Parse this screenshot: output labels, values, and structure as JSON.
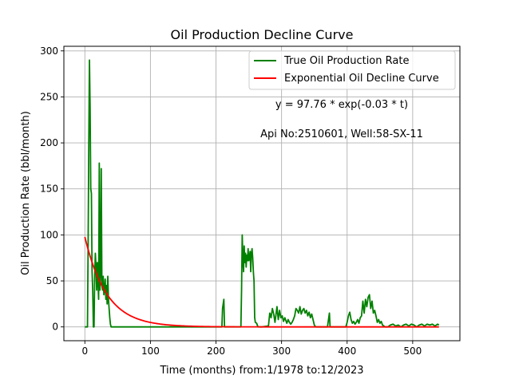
{
  "chart_data": {
    "type": "line",
    "title": "Oil Production Decline Curve",
    "xlabel": "Time (months) from:1/1978 to:12/2023",
    "ylabel": "Oil Production Rate (bbl/month)",
    "xlim": [
      -32,
      572
    ],
    "ylim": [
      -15,
      305
    ],
    "xticks": [
      0,
      100,
      200,
      300,
      400,
      500
    ],
    "yticks": [
      0,
      50,
      100,
      150,
      200,
      250,
      300
    ],
    "grid": true,
    "legend_position": "top-right",
    "annotations": [
      "y = 97.76 * exp(-0.03 * t)",
      "Api No:2510601, Well:58-SX-11"
    ],
    "series": [
      {
        "name": "True Oil Production Rate",
        "color": "#008000",
        "points": [
          [
            0,
            0
          ],
          [
            4,
            0
          ],
          [
            5,
            90
          ],
          [
            6,
            200
          ],
          [
            7,
            290
          ],
          [
            8,
            240
          ],
          [
            9,
            150
          ],
          [
            10,
            145
          ],
          [
            11,
            60
          ],
          [
            12,
            40
          ],
          [
            13,
            0
          ],
          [
            14,
            0
          ],
          [
            15,
            55
          ],
          [
            16,
            80
          ],
          [
            17,
            65
          ],
          [
            18,
            40
          ],
          [
            19,
            70
          ],
          [
            20,
            50
          ],
          [
            21,
            30
          ],
          [
            22,
            178
          ],
          [
            23,
            40
          ],
          [
            24,
            60
          ],
          [
            25,
            172
          ],
          [
            26,
            45
          ],
          [
            27,
            40
          ],
          [
            28,
            55
          ],
          [
            29,
            35
          ],
          [
            30,
            40
          ],
          [
            31,
            52
          ],
          [
            32,
            30
          ],
          [
            33,
            45
          ],
          [
            34,
            25
          ],
          [
            35,
            55
          ],
          [
            36,
            30
          ],
          [
            37,
            20
          ],
          [
            38,
            10
          ],
          [
            39,
            3
          ],
          [
            40,
            0
          ],
          [
            100,
            0
          ],
          [
            150,
            0
          ],
          [
            200,
            0
          ],
          [
            209,
            0
          ],
          [
            210,
            20
          ],
          [
            211,
            25
          ],
          [
            212,
            30
          ],
          [
            213,
            0
          ],
          [
            230,
            0
          ],
          [
            238,
            0
          ],
          [
            239,
            40
          ],
          [
            240,
            100
          ],
          [
            241,
            75
          ],
          [
            242,
            60
          ],
          [
            243,
            88
          ],
          [
            244,
            70
          ],
          [
            245,
            80
          ],
          [
            246,
            65
          ],
          [
            247,
            78
          ],
          [
            248,
            72
          ],
          [
            249,
            85
          ],
          [
            250,
            72
          ],
          [
            251,
            75
          ],
          [
            252,
            82
          ],
          [
            253,
            60
          ],
          [
            254,
            80
          ],
          [
            255,
            85
          ],
          [
            256,
            75
          ],
          [
            257,
            60
          ],
          [
            258,
            50
          ],
          [
            259,
            10
          ],
          [
            260,
            5
          ],
          [
            262,
            4
          ],
          [
            264,
            0
          ],
          [
            270,
            0
          ],
          [
            280,
            1
          ],
          [
            282,
            15
          ],
          [
            284,
            10
          ],
          [
            286,
            20
          ],
          [
            288,
            14
          ],
          [
            290,
            5
          ],
          [
            293,
            22
          ],
          [
            295,
            8
          ],
          [
            297,
            18
          ],
          [
            299,
            10
          ],
          [
            301,
            12
          ],
          [
            303,
            6
          ],
          [
            305,
            10
          ],
          [
            308,
            4
          ],
          [
            310,
            8
          ],
          [
            312,
            5
          ],
          [
            314,
            3
          ],
          [
            316,
            5
          ],
          [
            318,
            8
          ],
          [
            320,
            12
          ],
          [
            322,
            20
          ],
          [
            324,
            18
          ],
          [
            326,
            15
          ],
          [
            328,
            22
          ],
          [
            330,
            14
          ],
          [
            332,
            18
          ],
          [
            334,
            20
          ],
          [
            336,
            15
          ],
          [
            338,
            18
          ],
          [
            340,
            12
          ],
          [
            342,
            16
          ],
          [
            344,
            10
          ],
          [
            346,
            14
          ],
          [
            348,
            8
          ],
          [
            350,
            2
          ],
          [
            352,
            0
          ],
          [
            356,
            0
          ],
          [
            364,
            0
          ],
          [
            370,
            0
          ],
          [
            372,
            10
          ],
          [
            373,
            15
          ],
          [
            374,
            0
          ],
          [
            380,
            0
          ],
          [
            390,
            0
          ],
          [
            398,
            0
          ],
          [
            400,
            5
          ],
          [
            402,
            12
          ],
          [
            404,
            16
          ],
          [
            406,
            8
          ],
          [
            408,
            4
          ],
          [
            410,
            6
          ],
          [
            412,
            3
          ],
          [
            414,
            5
          ],
          [
            416,
            8
          ],
          [
            418,
            4
          ],
          [
            420,
            10
          ],
          [
            422,
            12
          ],
          [
            424,
            28
          ],
          [
            426,
            15
          ],
          [
            428,
            30
          ],
          [
            430,
            22
          ],
          [
            432,
            32
          ],
          [
            434,
            35
          ],
          [
            436,
            20
          ],
          [
            438,
            28
          ],
          [
            440,
            15
          ],
          [
            442,
            18
          ],
          [
            444,
            12
          ],
          [
            446,
            5
          ],
          [
            448,
            8
          ],
          [
            450,
            4
          ],
          [
            452,
            6
          ],
          [
            454,
            2
          ],
          [
            458,
            0
          ],
          [
            462,
            0
          ],
          [
            466,
            2
          ],
          [
            470,
            3
          ],
          [
            474,
            1
          ],
          [
            478,
            2
          ],
          [
            482,
            0
          ],
          [
            486,
            2
          ],
          [
            490,
            3
          ],
          [
            494,
            1
          ],
          [
            498,
            3
          ],
          [
            502,
            2
          ],
          [
            506,
            0
          ],
          [
            510,
            2
          ],
          [
            514,
            3
          ],
          [
            518,
            1
          ],
          [
            522,
            3
          ],
          [
            526,
            2
          ],
          [
            530,
            3
          ],
          [
            534,
            1
          ],
          [
            538,
            3
          ],
          [
            540,
            2
          ]
        ]
      },
      {
        "name": "Exponential Oil Decline Curve",
        "color": "#ff0000",
        "model": {
          "a": 97.76,
          "b": 0.03
        },
        "x_range": [
          0,
          540
        ]
      }
    ]
  }
}
